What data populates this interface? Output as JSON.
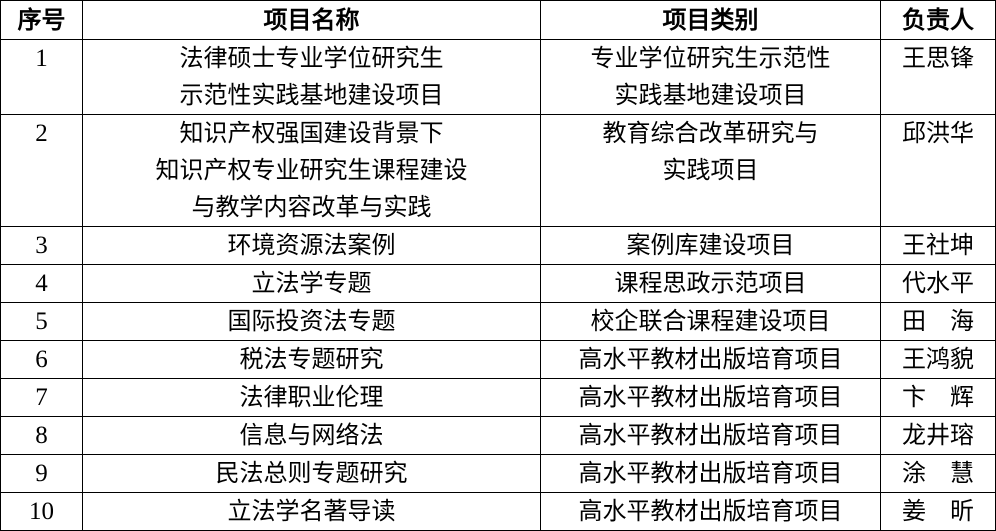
{
  "headers": [
    "序号",
    "项目名称",
    "项目类别",
    "负责人"
  ],
  "rows": [
    {
      "no": "1",
      "name": [
        "法律硕士专业学位研究生",
        "示范性实践基地建设项目"
      ],
      "category": [
        "专业学位研究生示范性",
        "实践基地建设项目"
      ],
      "leader": "王思锋"
    },
    {
      "no": "2",
      "name": [
        "知识产权强国建设背景下",
        "知识产权专业研究生课程建设",
        "与教学内容改革与实践"
      ],
      "category": [
        "教育综合改革研究与",
        "实践项目"
      ],
      "leader": "邱洪华"
    },
    {
      "no": "3",
      "name": [
        "环境资源法案例"
      ],
      "category": [
        "案例库建设项目"
      ],
      "leader": "王社坤"
    },
    {
      "no": "4",
      "name": [
        "立法学专题"
      ],
      "category": [
        "课程思政示范项目"
      ],
      "leader": "代水平"
    },
    {
      "no": "5",
      "name": [
        "国际投资法专题"
      ],
      "category": [
        "校企联合课程建设项目"
      ],
      "leader": "田　海"
    },
    {
      "no": "6",
      "name": [
        "税法专题研究"
      ],
      "category": [
        "高水平教材出版培育项目"
      ],
      "leader": "王鸿貌"
    },
    {
      "no": "7",
      "name": [
        "法律职业伦理"
      ],
      "category": [
        "高水平教材出版培育项目"
      ],
      "leader": "卞　辉"
    },
    {
      "no": "8",
      "name": [
        "信息与网络法"
      ],
      "category": [
        "高水平教材出版培育项目"
      ],
      "leader": "龙井瑢"
    },
    {
      "no": "9",
      "name": [
        "民法总则专题研究"
      ],
      "category": [
        "高水平教材出版培育项目"
      ],
      "leader": "涂　慧"
    },
    {
      "no": "10",
      "name": [
        "立法学名著导读"
      ],
      "category": [
        "高水平教材出版培育项目"
      ],
      "leader": "姜　昕"
    }
  ]
}
